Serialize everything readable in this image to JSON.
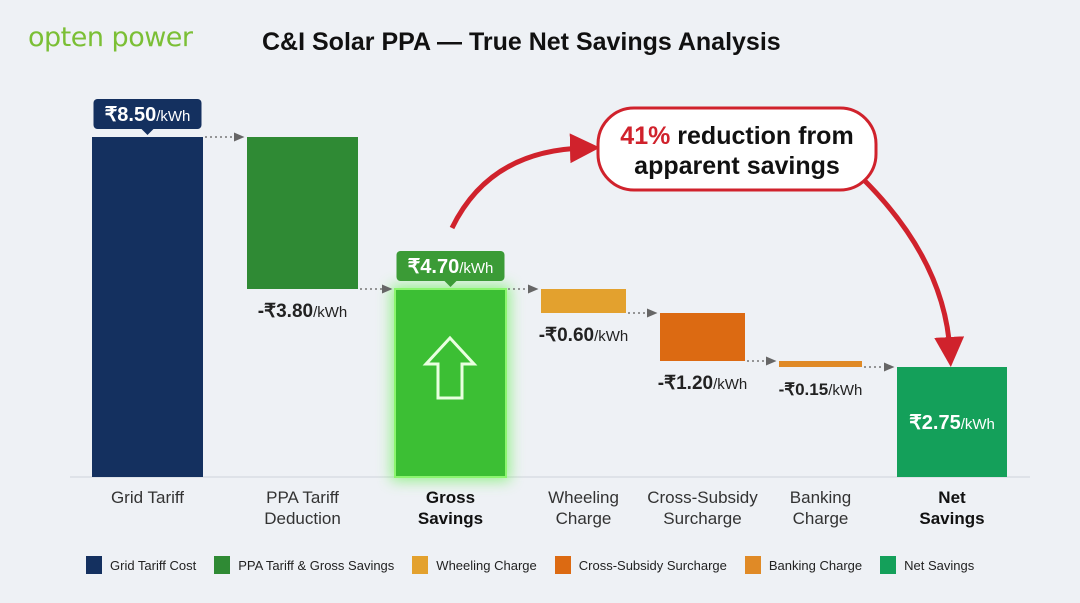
{
  "brand": {
    "logo_text": "opten power"
  },
  "chart_data": {
    "type": "bar",
    "subtype": "waterfall",
    "title": "C&I Solar PPA — True Net Savings Analysis",
    "unit": "/kWh",
    "categories": [
      "Grid Tariff",
      "PPA Tariff Deduction",
      "Gross Savings",
      "Wheeling Charge",
      "Cross-Subsidy Surcharge",
      "Banking Charge",
      "Net Savings"
    ],
    "values": [
      8.5,
      -3.8,
      4.7,
      -0.6,
      -1.2,
      -0.15,
      2.75
    ],
    "kinds": [
      "total",
      "delta",
      "total",
      "delta",
      "delta",
      "delta",
      "total"
    ],
    "value_labels": [
      "₹8.50",
      "-₹3.80",
      "₹4.70",
      "-₹0.60",
      "-₹1.20",
      "-₹0.15",
      "₹2.75"
    ],
    "colors": [
      "#14305f",
      "#2f8a34",
      "#3cbf34",
      "#e3a12e",
      "#dc6a12",
      "#e08a26",
      "#14a05a"
    ],
    "ylim": [
      0,
      8.5
    ],
    "grid": false,
    "legend_position": "bottom",
    "legend": [
      {
        "label": "Grid Tariff Cost",
        "color": "#14305f"
      },
      {
        "label": "PPA Tariff & Gross Savings",
        "color": "#2f8a34"
      },
      {
        "label": "Wheeling Charge",
        "color": "#e3a12e"
      },
      {
        "label": "Cross-Subsidy Surcharge",
        "color": "#dc6a12"
      },
      {
        "label": "Banking Charge",
        "color": "#e08a26"
      },
      {
        "label": "Net Savings",
        "color": "#14a05a"
      }
    ],
    "annotation": {
      "highlight": "41%",
      "text": " reduction from",
      "line2": "apparent savings",
      "color": "#d0222c"
    }
  }
}
